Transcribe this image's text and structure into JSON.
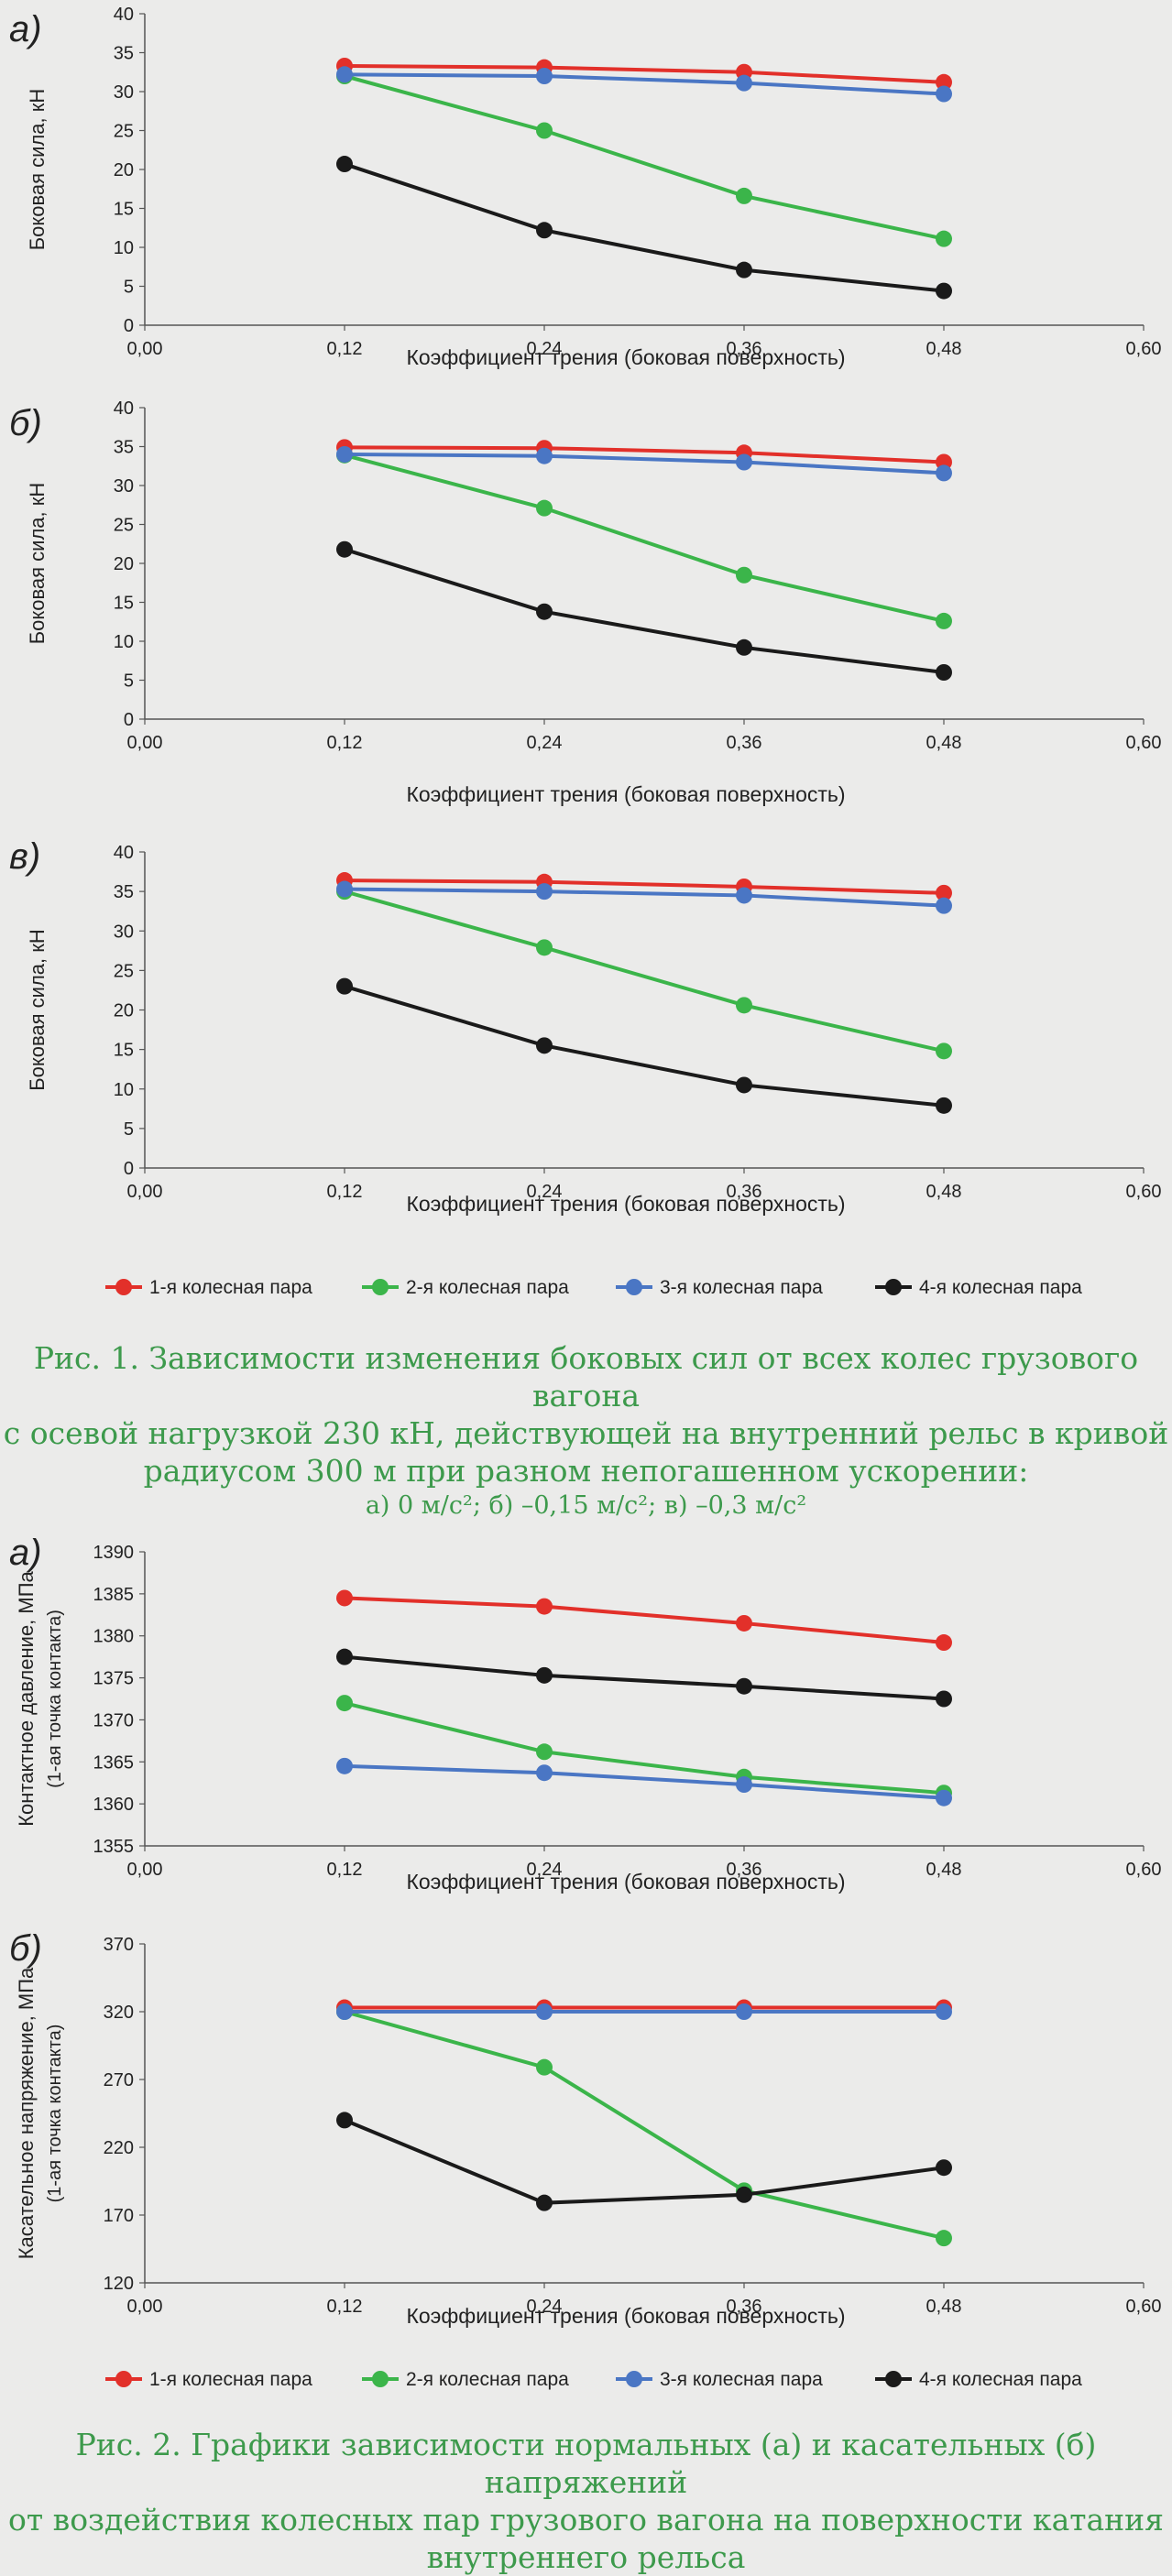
{
  "chart_data": [
    {
      "type": "line",
      "panel": "а)",
      "xlabel": "Коэффициент трения (боковая поверхность)",
      "ylabel": "Боковая сила, кН",
      "xlim": [
        0,
        0.6
      ],
      "ylim": [
        0,
        40
      ],
      "x_ticks": [
        "0,00",
        "0,12",
        "0,24",
        "0,36",
        "0,48",
        "0,60"
      ],
      "y_ticks": [
        "0",
        "5",
        "10",
        "15",
        "20",
        "25",
        "30",
        "35",
        "40"
      ],
      "x": [
        0.12,
        0.24,
        0.36,
        0.48
      ],
      "grid": false,
      "series": [
        {
          "name": "1-я колесная пара",
          "color": "#e2302a",
          "values": [
            33.3,
            33.1,
            32.5,
            31.2
          ]
        },
        {
          "name": "2-я колесная пара",
          "color": "#3bb54a",
          "values": [
            32.0,
            25.0,
            16.6,
            11.1
          ]
        },
        {
          "name": "3-я колесная пара",
          "color": "#4a76c4",
          "values": [
            32.2,
            32.0,
            31.1,
            29.7
          ]
        },
        {
          "name": "4-я колесная пара",
          "color": "#1a1a1a",
          "values": [
            20.7,
            12.2,
            7.1,
            4.4
          ]
        }
      ]
    },
    {
      "type": "line",
      "panel": "б)",
      "xlabel": "Коэффициент трения (боковая поверхность)",
      "ylabel": "Боковая сила, кН",
      "xlim": [
        0,
        0.6
      ],
      "ylim": [
        0,
        40
      ],
      "x_ticks": [
        "0,00",
        "0,12",
        "0,24",
        "0,36",
        "0,48",
        "0,60"
      ],
      "y_ticks": [
        "0",
        "5",
        "10",
        "15",
        "20",
        "25",
        "30",
        "35",
        "40"
      ],
      "x": [
        0.12,
        0.24,
        0.36,
        0.48
      ],
      "grid": false,
      "series": [
        {
          "name": "1-я колесная пара",
          "color": "#e2302a",
          "values": [
            34.9,
            34.8,
            34.2,
            33.0
          ]
        },
        {
          "name": "2-я колесная пара",
          "color": "#3bb54a",
          "values": [
            33.9,
            27.1,
            18.5,
            12.6
          ]
        },
        {
          "name": "3-я колесная пара",
          "color": "#4a76c4",
          "values": [
            34.0,
            33.8,
            33.0,
            31.6
          ]
        },
        {
          "name": "4-я колесная пара",
          "color": "#1a1a1a",
          "values": [
            21.8,
            13.8,
            9.2,
            6.0
          ]
        }
      ]
    },
    {
      "type": "line",
      "panel": "в)",
      "xlabel": "Коэффициент трения (боковая поверхность)",
      "ylabel": "Боковая сила, кН",
      "xlim": [
        0,
        0.6
      ],
      "ylim": [
        0,
        40
      ],
      "x_ticks": [
        "0,00",
        "0,12",
        "0,24",
        "0,36",
        "0,48",
        "0,60"
      ],
      "y_ticks": [
        "0",
        "5",
        "10",
        "15",
        "20",
        "25",
        "30",
        "35",
        "40"
      ],
      "x": [
        0.12,
        0.24,
        0.36,
        0.48
      ],
      "grid": false,
      "series": [
        {
          "name": "1-я колесная пара",
          "color": "#e2302a",
          "values": [
            36.4,
            36.2,
            35.6,
            34.8
          ]
        },
        {
          "name": "2-я колесная пара",
          "color": "#3bb54a",
          "values": [
            35.0,
            27.9,
            20.6,
            14.8
          ]
        },
        {
          "name": "3-я колесная пара",
          "color": "#4a76c4",
          "values": [
            35.3,
            35.0,
            34.5,
            33.2
          ]
        },
        {
          "name": "4-я колесная пара",
          "color": "#1a1a1a",
          "values": [
            23.0,
            15.5,
            10.5,
            7.9
          ]
        }
      ]
    },
    {
      "type": "line",
      "panel": "а)",
      "xlabel": "Коэффициент трения (боковая поверхность)",
      "ylabel": "Контактное давление, МПа",
      "ylabel2": "(1-ая точка контакта)",
      "xlim": [
        0,
        0.6
      ],
      "ylim": [
        1355,
        1390
      ],
      "x_ticks": [
        "0,00",
        "0,12",
        "0,24",
        "0,36",
        "0,48",
        "0,60"
      ],
      "y_ticks": [
        "1355",
        "1360",
        "1365",
        "1370",
        "1375",
        "1380",
        "1385",
        "1390"
      ],
      "x": [
        0.12,
        0.24,
        0.36,
        0.48
      ],
      "grid": false,
      "series": [
        {
          "name": "1-я колесная пара",
          "color": "#e2302a",
          "values": [
            1384.5,
            1383.5,
            1381.5,
            1379.2
          ]
        },
        {
          "name": "2-я колесная пара",
          "color": "#3bb54a",
          "values": [
            1372.0,
            1366.2,
            1363.2,
            1361.3
          ]
        },
        {
          "name": "3-я колесная пара",
          "color": "#4a76c4",
          "values": [
            1364.5,
            1363.7,
            1362.3,
            1360.7
          ]
        },
        {
          "name": "4-я колесная пара",
          "color": "#1a1a1a",
          "values": [
            1377.5,
            1375.3,
            1374.0,
            1372.5
          ]
        }
      ]
    },
    {
      "type": "line",
      "panel": "б)",
      "xlabel": "Коэффициент трения (боковая поверхность)",
      "ylabel": "Касательное напряжение, МПа",
      "ylabel2": "(1-ая точка контакта)",
      "xlim": [
        0,
        0.6
      ],
      "ylim": [
        120,
        370
      ],
      "x_ticks": [
        "0,00",
        "0,12",
        "0,24",
        "0,36",
        "0,48",
        "0,60"
      ],
      "y_ticks": [
        "120",
        "170",
        "220",
        "270",
        "320",
        "370"
      ],
      "x": [
        0.12,
        0.24,
        0.36,
        0.48
      ],
      "grid": false,
      "series": [
        {
          "name": "1-я колесная пара",
          "color": "#e2302a",
          "values": [
            323,
            323,
            323,
            323
          ]
        },
        {
          "name": "2-я колесная пара",
          "color": "#3bb54a",
          "values": [
            320,
            279,
            188,
            153
          ]
        },
        {
          "name": "3-я колесная пара",
          "color": "#4a76c4",
          "values": [
            320,
            320,
            320,
            320
          ]
        },
        {
          "name": "4-я колесная пара",
          "color": "#1a1a1a",
          "values": [
            240,
            179,
            185,
            205
          ]
        }
      ]
    }
  ],
  "legend": [
    "1-я колесная пара",
    "2-я колесная пара",
    "3-я колесная пара",
    "4-я колесная пара"
  ],
  "captions": {
    "fig1_line1": "Рис. 1. Зависимости изменения боковых сил от всех колес грузового вагона",
    "fig1_line2": "с осевой нагрузкой 230 кН, действующей на внутренний рельс в кривой",
    "fig1_line3": "радиусом 300 м при разном непогашенном ускорении:",
    "fig1_line4": "а) 0 м/с²; б) –0,15 м/с²; в) –0,3 м/с²",
    "fig2_line1": "Рис. 2. Графики зависимости нормальных (а) и касательных (б) напряжений",
    "fig2_line2": "от воздействия колесных пар грузового вагона на поверхности катания",
    "fig2_line3": "внутреннего рельса"
  }
}
